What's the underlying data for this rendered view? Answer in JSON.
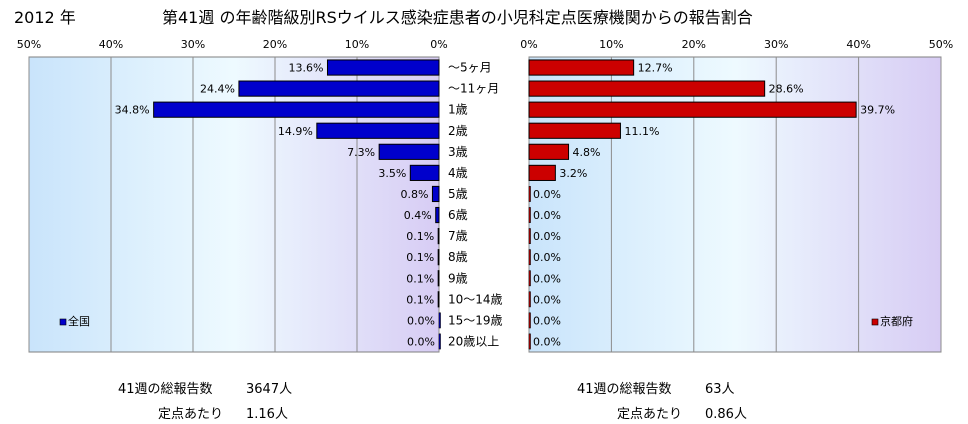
{
  "header": {
    "year": "2012 年",
    "title": "第41週 の年齢階級別RSウイルス感染症患者の小児科定点医療機関からの報告割合"
  },
  "chart_data": [
    {
      "type": "bar",
      "orientation": "horizontal",
      "direction": "right-to-left",
      "legend": "全国",
      "legend_position": "bottom-left",
      "color": "#0000CC",
      "xlim": [
        0,
        50
      ],
      "x_unit": "%",
      "grid": true,
      "x_ticks": [
        "50%",
        "40%",
        "30%",
        "20%",
        "10%",
        "0%"
      ],
      "categories": [
        "～5ヶ月",
        "～11ヶ月",
        "1歳",
        "2歳",
        "3歳",
        "4歳",
        "5歳",
        "6歳",
        "7歳",
        "8歳",
        "9歳",
        "10～14歳",
        "15～19歳",
        "20歳以上"
      ],
      "values": [
        13.6,
        24.4,
        34.8,
        14.9,
        7.3,
        3.5,
        0.8,
        0.4,
        0.1,
        0.1,
        0.1,
        0.1,
        0.0,
        0.0
      ],
      "labels": [
        "13.6%",
        "24.4%",
        "34.8%",
        "14.9%",
        "7.3%",
        "3.5%",
        "0.8%",
        "0.4%",
        "0.1%",
        "0.1%",
        "0.1%",
        "0.1%",
        "0.0%",
        "0.0%"
      ]
    },
    {
      "type": "bar",
      "orientation": "horizontal",
      "direction": "left-to-right",
      "legend": "京都府",
      "legend_position": "bottom-right",
      "color": "#CC0000",
      "xlim": [
        0,
        50
      ],
      "x_unit": "%",
      "grid": true,
      "x_ticks": [
        "0%",
        "10%",
        "20%",
        "30%",
        "40%",
        "50%"
      ],
      "categories": [
        "～5ヶ月",
        "～11ヶ月",
        "1歳",
        "2歳",
        "3歳",
        "4歳",
        "5歳",
        "6歳",
        "7歳",
        "8歳",
        "9歳",
        "10～14歳",
        "15～19歳",
        "20歳以上"
      ],
      "values": [
        12.7,
        28.6,
        39.7,
        11.1,
        4.8,
        3.2,
        0.0,
        0.0,
        0.0,
        0.0,
        0.0,
        0.0,
        0.0,
        0.0
      ],
      "labels": [
        "12.7%",
        "28.6%",
        "39.7%",
        "11.1%",
        "4.8%",
        "3.2%",
        "0.0%",
        "0.0%",
        "0.0%",
        "0.0%",
        "0.0%",
        "0.0%",
        "0.0%",
        "0.0%"
      ]
    }
  ],
  "footer": {
    "national": {
      "reports_label": "41週の総報告数",
      "reports_value": "3647人",
      "per_site_label": "定点あたり",
      "per_site_value": "1.16人"
    },
    "kyoto": {
      "reports_label": "41週の総報告数",
      "reports_value": "63人",
      "per_site_label": "定点あたり",
      "per_site_value": "0.86人"
    }
  }
}
